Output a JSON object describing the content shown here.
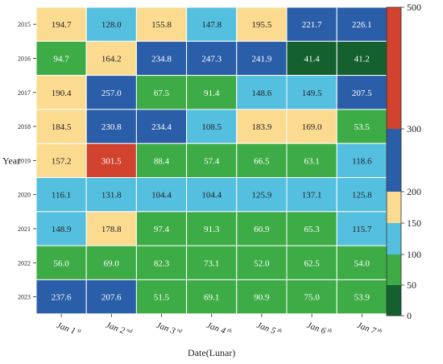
{
  "chart_data": {
    "type": "heatmap",
    "title": "",
    "xlabel": "Date(Lunar)",
    "ylabel": "Year",
    "x_categories": [
      {
        "base": "Jan 1",
        "sup": "st"
      },
      {
        "base": "Jan 2",
        "sup": "nd"
      },
      {
        "base": "Jan 3",
        "sup": "rd"
      },
      {
        "base": "Jan 4",
        "sup": "th"
      },
      {
        "base": "Jan 5",
        "sup": "th"
      },
      {
        "base": "Jan 6",
        "sup": "th"
      },
      {
        "base": "Jan 7",
        "sup": "th"
      }
    ],
    "y_categories": [
      "2015",
      "2016",
      "2017",
      "2018",
      "2019",
      "2020",
      "2021",
      "2022",
      "2023"
    ],
    "values": [
      [
        194.7,
        128.0,
        155.8,
        147.8,
        195.5,
        221.7,
        226.1
      ],
      [
        94.7,
        164.2,
        234.8,
        247.3,
        241.9,
        41.4,
        41.2
      ],
      [
        190.4,
        257.0,
        67.5,
        91.4,
        148.6,
        149.5,
        207.5
      ],
      [
        184.5,
        230.8,
        234.4,
        108.5,
        183.9,
        169.0,
        53.5
      ],
      [
        157.2,
        301.5,
        88.4,
        57.4,
        66.5,
        63.1,
        118.6
      ],
      [
        116.1,
        131.8,
        104.4,
        104.4,
        125.9,
        137.1,
        125.8
      ],
      [
        148.9,
        178.8,
        97.4,
        91.3,
        60.9,
        65.3,
        115.7
      ],
      [
        56.0,
        69.0,
        82.3,
        73.1,
        52.0,
        62.5,
        54.0
      ],
      [
        237.6,
        207.6,
        51.5,
        69.1,
        90.9,
        75.0,
        53.9
      ]
    ],
    "value_labels": [
      [
        "194.7",
        "128.0",
        "155.8",
        "147.8",
        "195.5",
        "221.7",
        "226.1"
      ],
      [
        "94.7",
        "164.2",
        "234.8",
        "247.3",
        "241.9",
        "41.4",
        "41.2"
      ],
      [
        "190.4",
        "257.0",
        "67.5",
        "91.4",
        "148.6",
        "149.5",
        "207.5"
      ],
      [
        "184.5",
        "230.8",
        "234.4",
        "108.5",
        "183.9",
        "169.0",
        "53.5"
      ],
      [
        "157.2",
        "301.5",
        "88.4",
        "57.4",
        "66.5",
        "63.1",
        "118.6"
      ],
      [
        "116.1",
        "131.8",
        "104.4",
        "104.4",
        "125.9",
        "137.1",
        "125.8"
      ],
      [
        "148.9",
        "178.8",
        "97.4",
        "91.3",
        "60.9",
        "65.3",
        "115.7"
      ],
      [
        "56.0",
        "69.0",
        "82.3",
        "73.1",
        "52.0",
        "62.5",
        "54.0"
      ],
      [
        "237.6",
        "207.6",
        "51.5",
        "69.1",
        "90.9",
        "75.0",
        "53.9"
      ]
    ],
    "colorbar": {
      "bounds": [
        0,
        50,
        100,
        150,
        200,
        300,
        500
      ],
      "colors": [
        "#14602e",
        "#3eac46",
        "#55bfe0",
        "#fbdb8f",
        "#2b5ea8",
        "#d2432f"
      ],
      "tick_labels": [
        "0",
        "50",
        "100",
        "150",
        "200",
        "300",
        "500"
      ]
    },
    "text_color_light": "#ffffff",
    "text_color_dark": "#222222",
    "grid": true
  }
}
